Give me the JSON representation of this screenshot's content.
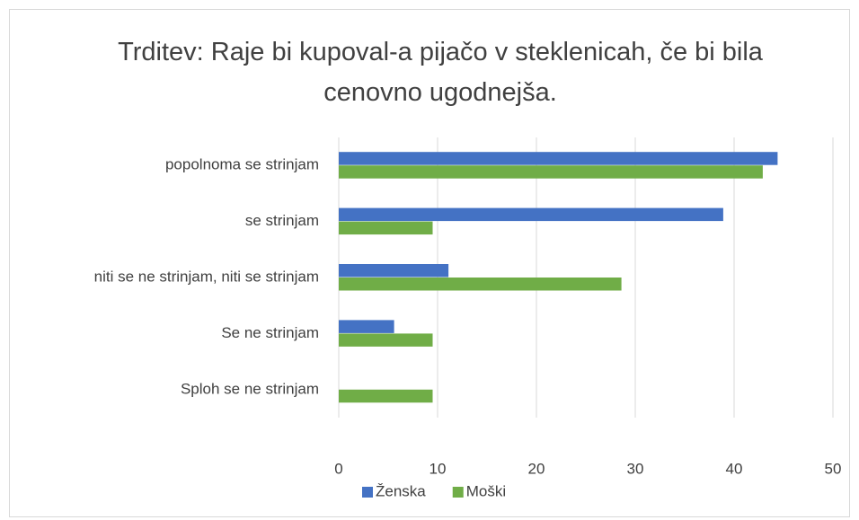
{
  "chart_data": {
    "type": "hbar",
    "title": "Trditev: Raje bi kupoval-a pijačo v steklenicah, če bi bila cenovno ugodnejša.",
    "categories": [
      "popolnoma se strinjam",
      "se strinjam",
      "niti se ne strinjam, niti se strinjam",
      "Se ne strinjam",
      "Sploh se ne strinjam"
    ],
    "series": [
      {
        "name": "Ženska",
        "color": "#4472c4",
        "values": [
          44.4,
          38.9,
          11.1,
          5.6,
          0
        ]
      },
      {
        "name": "Moški",
        "color": "#70ad47",
        "values": [
          42.9,
          9.5,
          28.6,
          9.5,
          9.5
        ]
      }
    ],
    "xlim": [
      0,
      50
    ],
    "xticks": [
      0,
      10,
      20,
      30,
      40,
      50
    ],
    "grid": true,
    "legend": "bottom"
  }
}
